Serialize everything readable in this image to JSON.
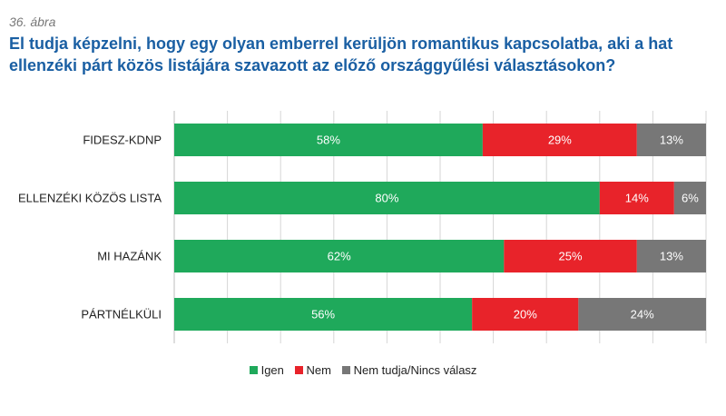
{
  "figure_label": "36. ábra",
  "title": "El tudja képzelni, hogy egy olyan emberrel kerüljön romantikus kapcsolatba, aki a hat ellenzéki párt közös listájára szavazott az előző országgyűlési választásokon?",
  "chart_data": {
    "type": "bar",
    "orientation": "horizontal",
    "stacked": true,
    "normalized": true,
    "categories": [
      "FIDESZ-KDNP",
      "ELLENZÉKI KÖZÖS LISTA",
      "MI HAZÁNK",
      "PÁRTNÉLKÜLI"
    ],
    "series": [
      {
        "name": "Igen",
        "color": "#1fa95b",
        "values": [
          58,
          80,
          62,
          56
        ],
        "labels": [
          "58%",
          "80%",
          "62%",
          "56%"
        ]
      },
      {
        "name": "Nem",
        "color": "#e8232a",
        "values": [
          29,
          14,
          25,
          20
        ],
        "labels": [
          "29%",
          "14%",
          "25%",
          "20%"
        ]
      },
      {
        "name": "Nem tudja/Nincs válasz",
        "color": "#777777",
        "values": [
          13,
          6,
          13,
          24
        ],
        "labels": [
          "13%",
          "6%",
          "13%",
          "24%"
        ]
      }
    ],
    "xlim": [
      0,
      100
    ],
    "grid": "vertical",
    "legend_position": "bottom"
  }
}
